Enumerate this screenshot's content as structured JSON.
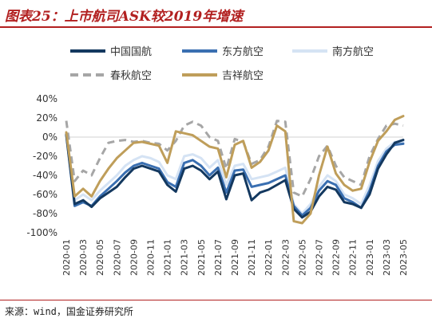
{
  "header": {
    "title": "图表25：上市航司ASK较2019年增速"
  },
  "footer": {
    "source": "来源：wind，国金证券研究所"
  },
  "colors": {
    "china_air": "#13385f",
    "china_eastern": "#3a6fb1",
    "china_southern": "#d5e3f4",
    "spring": "#a6a6a6",
    "juneyao": "#bf9e5a",
    "axis": "#d0d0d0",
    "text": "#333333"
  },
  "chart_data": {
    "type": "line",
    "title": "",
    "xlabel": "",
    "ylabel": "",
    "ylim": [
      -1.0,
      0.4
    ],
    "yticks": [
      "40%",
      "20%",
      "0%",
      "-20%",
      "-40%",
      "-60%",
      "-80%",
      "-100%"
    ],
    "xticks": [
      "2020-01",
      "2020-03",
      "2020-05",
      "2020-07",
      "2020-09",
      "2020-11",
      "2021-01",
      "2021-03",
      "2021-05",
      "2021-07",
      "2021-09",
      "2021-11",
      "2022-01",
      "2022-03",
      "2022-05",
      "2022-07",
      "2022-09",
      "2022-11",
      "2023-01",
      "2023-03",
      "2023-05"
    ],
    "x": [
      "2020-01",
      "2020-02",
      "2020-03",
      "2020-04",
      "2020-05",
      "2020-06",
      "2020-07",
      "2020-08",
      "2020-09",
      "2020-10",
      "2020-11",
      "2020-12",
      "2021-01",
      "2021-02",
      "2021-03",
      "2021-04",
      "2021-05",
      "2021-06",
      "2021-07",
      "2021-08",
      "2021-09",
      "2021-10",
      "2021-11",
      "2021-12",
      "2022-01",
      "2022-02",
      "2022-03",
      "2022-04",
      "2022-05",
      "2022-06",
      "2022-07",
      "2022-08",
      "2022-09",
      "2022-10",
      "2022-11",
      "2022-12",
      "2023-01",
      "2023-02",
      "2023-03",
      "2023-04",
      "2023-05"
    ],
    "legend_position": "top",
    "series": [
      {
        "name": "中国国航",
        "color_key": "china_air",
        "style": "solid",
        "values": [
          0.03,
          -0.7,
          -0.66,
          -0.73,
          -0.64,
          -0.58,
          -0.52,
          -0.42,
          -0.33,
          -0.3,
          -0.33,
          -0.36,
          -0.5,
          -0.57,
          -0.33,
          -0.3,
          -0.35,
          -0.44,
          -0.36,
          -0.65,
          -0.4,
          -0.38,
          -0.66,
          -0.58,
          -0.55,
          -0.5,
          -0.45,
          -0.75,
          -0.84,
          -0.78,
          -0.62,
          -0.52,
          -0.55,
          -0.68,
          -0.7,
          -0.74,
          -0.6,
          -0.33,
          -0.18,
          -0.06,
          -0.03
        ]
      },
      {
        "name": "东方航空",
        "color_key": "china_eastern",
        "style": "solid",
        "values": [
          0.02,
          -0.72,
          -0.68,
          -0.72,
          -0.62,
          -0.54,
          -0.46,
          -0.37,
          -0.3,
          -0.27,
          -0.3,
          -0.33,
          -0.47,
          -0.52,
          -0.27,
          -0.24,
          -0.3,
          -0.4,
          -0.32,
          -0.58,
          -0.35,
          -0.34,
          -0.52,
          -0.5,
          -0.48,
          -0.44,
          -0.4,
          -0.72,
          -0.82,
          -0.74,
          -0.56,
          -0.46,
          -0.5,
          -0.64,
          -0.68,
          -0.74,
          -0.56,
          -0.3,
          -0.15,
          -0.08,
          -0.07
        ]
      },
      {
        "name": "南方航空",
        "color_key": "china_southern",
        "style": "solid",
        "values": [
          0.04,
          -0.66,
          -0.6,
          -0.66,
          -0.56,
          -0.48,
          -0.4,
          -0.3,
          -0.24,
          -0.2,
          -0.22,
          -0.26,
          -0.4,
          -0.44,
          -0.2,
          -0.18,
          -0.22,
          -0.32,
          -0.24,
          -0.5,
          -0.3,
          -0.28,
          -0.44,
          -0.42,
          -0.4,
          -0.36,
          -0.32,
          -0.7,
          -0.8,
          -0.7,
          -0.52,
          -0.4,
          -0.46,
          -0.6,
          -0.64,
          -0.7,
          -0.5,
          -0.25,
          -0.12,
          -0.05,
          -0.05
        ]
      },
      {
        "name": "春秋航空",
        "color_key": "spring",
        "style": "dashed",
        "values": [
          0.17,
          -0.46,
          -0.35,
          -0.4,
          -0.22,
          -0.06,
          -0.04,
          -0.03,
          -0.05,
          -0.04,
          -0.06,
          -0.07,
          -0.14,
          -0.04,
          0.12,
          0.16,
          0.12,
          0.0,
          -0.04,
          -0.33,
          -0.02,
          -0.05,
          -0.28,
          -0.24,
          -0.1,
          0.17,
          0.16,
          -0.58,
          -0.62,
          -0.44,
          -0.2,
          -0.09,
          -0.3,
          -0.42,
          -0.46,
          -0.5,
          -0.2,
          -0.02,
          0.12,
          0.14,
          0.12
        ]
      },
      {
        "name": "吉祥航空",
        "color_key": "juneyao",
        "style": "solid",
        "values": [
          0.05,
          -0.62,
          -0.54,
          -0.62,
          -0.46,
          -0.33,
          -0.22,
          -0.14,
          -0.06,
          -0.05,
          -0.07,
          -0.09,
          -0.27,
          0.06,
          0.04,
          0.02,
          -0.04,
          -0.1,
          -0.12,
          -0.42,
          -0.08,
          -0.04,
          -0.32,
          -0.26,
          -0.14,
          0.12,
          0.06,
          -0.88,
          -0.9,
          -0.8,
          -0.4,
          -0.1,
          -0.38,
          -0.5,
          -0.56,
          -0.54,
          -0.26,
          -0.04,
          0.06,
          0.18,
          0.22
        ]
      }
    ]
  }
}
